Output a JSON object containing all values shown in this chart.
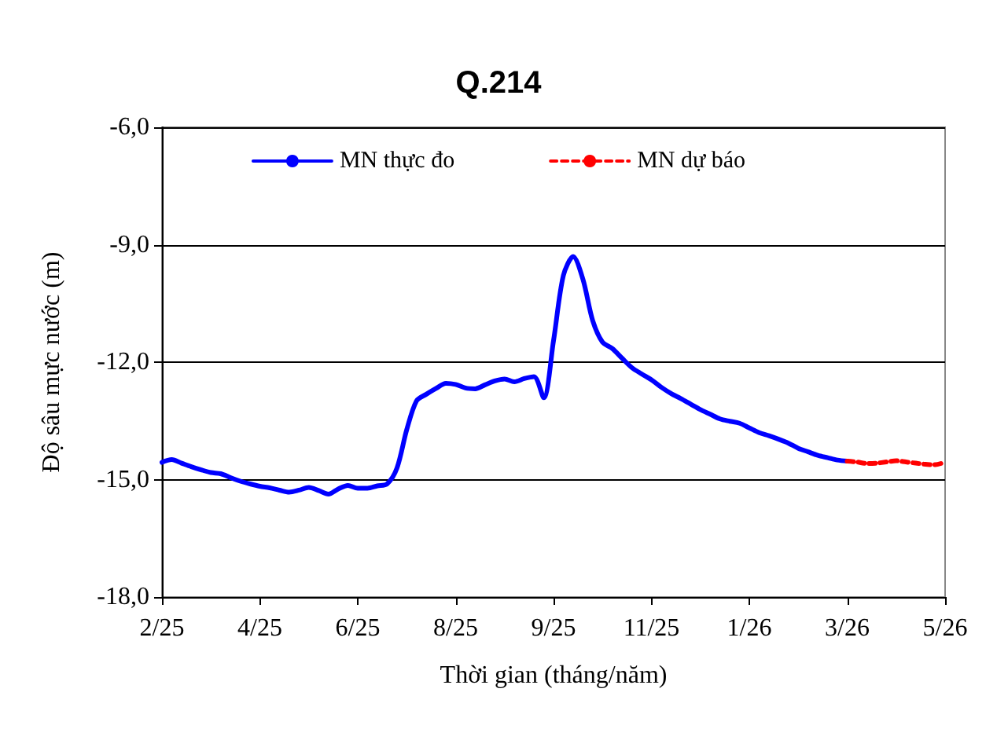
{
  "chart_data": {
    "type": "line",
    "title": "Q.214",
    "xlabel": "Thời gian (tháng/năm)",
    "ylabel": "Độ sâu mực nước (m)",
    "categories": [
      "2/25",
      null,
      null,
      null,
      null,
      null,
      null,
      null,
      null,
      null,
      "4/25",
      null,
      null,
      null,
      null,
      null,
      null,
      null,
      null,
      null,
      "6/25",
      null,
      null,
      null,
      null,
      null,
      null,
      null,
      null,
      null,
      "8/25",
      null,
      null,
      null,
      null,
      null,
      null,
      null,
      null,
      null,
      "9/25",
      null,
      null,
      null,
      null,
      null,
      null,
      null,
      null,
      null,
      "11/25",
      null,
      null,
      null,
      null,
      null,
      null,
      null,
      null,
      null,
      "1/26",
      null,
      null,
      null,
      null,
      null,
      null,
      null,
      null,
      null,
      "3/26",
      null,
      null,
      null,
      null,
      null,
      null,
      null,
      null,
      null,
      "5/26"
    ],
    "ylim": [
      -18,
      -6
    ],
    "yticks": [
      {
        "value": -18,
        "label": "-18,0"
      },
      {
        "value": -15,
        "label": "-15,0"
      },
      {
        "value": -12,
        "label": "-12,0"
      },
      {
        "value": -9,
        "label": "-9,0"
      },
      {
        "value": -6,
        "label": "-6,0"
      }
    ],
    "grid": "y",
    "legend": "top",
    "marker": "none",
    "series": [
      {
        "name": "MN thực đo",
        "color": "#0000ff",
        "line_style": "solid",
        "values": [
          -14.56,
          -14.49,
          -14.58,
          -14.67,
          -14.75,
          -14.82,
          -14.85,
          -14.95,
          -15.04,
          -15.11,
          -15.17,
          -15.21,
          -15.27,
          -15.32,
          -15.27,
          -15.2,
          -15.28,
          -15.37,
          -15.24,
          -15.15,
          -15.22,
          -15.22,
          -15.16,
          -15.11,
          -14.71,
          -13.73,
          -12.99,
          -12.82,
          -12.67,
          -12.54,
          -12.57,
          -12.66,
          -12.68,
          -12.58,
          -12.48,
          -12.43,
          -12.5,
          -12.42,
          -12.37,
          -12.91,
          -11.45,
          -9.79,
          -9.3,
          -9.88,
          -10.94,
          -11.49,
          -11.65,
          -11.9,
          -12.14,
          -12.3,
          -12.45,
          -12.64,
          -12.8,
          -12.93,
          -13.07,
          -13.21,
          -13.33,
          -13.45,
          -13.51,
          -13.56,
          -13.68,
          -13.8,
          -13.88,
          -13.97,
          -14.07,
          -14.2,
          -14.29,
          -14.38,
          -14.44,
          -14.5,
          -14.53,
          null,
          null,
          null,
          null,
          null,
          null,
          null,
          null,
          null,
          null
        ]
      },
      {
        "name": "MN dự báo",
        "color": "#ff0000",
        "line_style": "dashed",
        "values": [
          null,
          null,
          null,
          null,
          null,
          null,
          null,
          null,
          null,
          null,
          null,
          null,
          null,
          null,
          null,
          null,
          null,
          null,
          null,
          null,
          null,
          null,
          null,
          null,
          null,
          null,
          null,
          null,
          null,
          null,
          null,
          null,
          null,
          null,
          null,
          null,
          null,
          null,
          null,
          null,
          null,
          null,
          null,
          null,
          null,
          null,
          null,
          null,
          null,
          null,
          null,
          null,
          null,
          null,
          null,
          null,
          null,
          null,
          null,
          null,
          null,
          null,
          null,
          null,
          null,
          null,
          null,
          null,
          null,
          null,
          -14.53,
          -14.55,
          -14.59,
          -14.58,
          -14.55,
          -14.52,
          -14.55,
          -14.58,
          -14.61,
          -14.62,
          -14.55
        ]
      }
    ]
  }
}
